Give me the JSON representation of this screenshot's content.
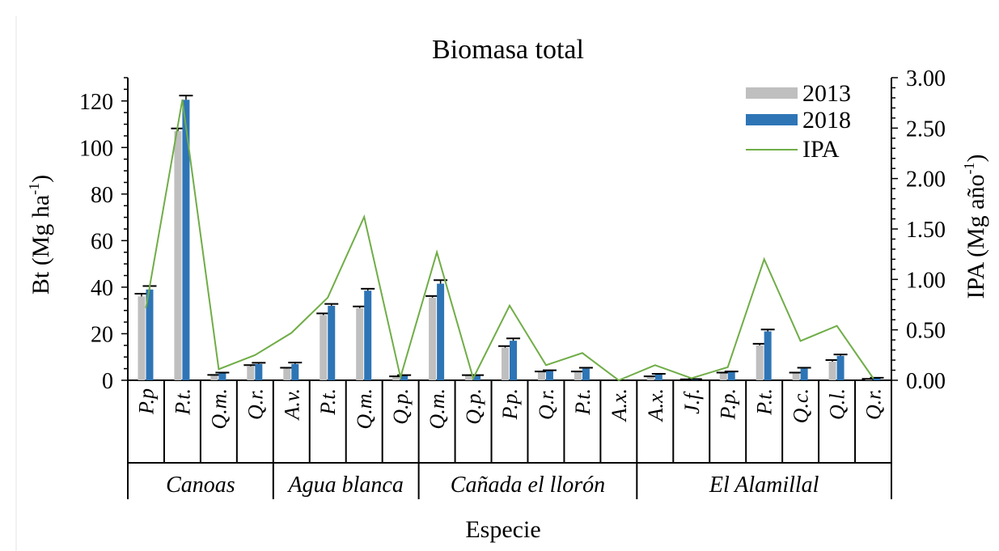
{
  "chart_data": {
    "type": "bar",
    "title": "Biomasa total",
    "xlabel": "Especie",
    "ylabel": "Bt (Mg ha",
    "ylabel_sup": "-1",
    "ylabel_tail": ")",
    "y2label": "IPA (Mg año",
    "y2label_sup": "-1",
    "y2label_tail": ")",
    "ylim": [
      0,
      130
    ],
    "y2lim": [
      0,
      3.0
    ],
    "yticks": [
      "0",
      "20",
      "40",
      "60",
      "80",
      "100",
      "120"
    ],
    "y2ticks": [
      "0.00",
      "0.50",
      "1.00",
      "1.50",
      "2.00",
      "2.50",
      "3.00"
    ],
    "categories": [
      "P.p",
      "P.t.",
      "Q.m.",
      "Q.r.",
      "A.v.",
      "P.t.",
      "Q.m.",
      "Q.p.",
      "Q.m.",
      "Q.p.",
      "P.p.",
      "Q.r.",
      "P.t.",
      "A.x.",
      "A.x.",
      "J.f.",
      "P.p.",
      "P.t.",
      "Q.c.",
      "Q.l.",
      "Q.r."
    ],
    "groups": [
      {
        "name": "Canoas",
        "start": 0,
        "end": 3
      },
      {
        "name": "Agua blanca",
        "start": 4,
        "end": 7
      },
      {
        "name": "Cañada el llorón",
        "start": 8,
        "end": 13
      },
      {
        "name": "El Alamillal",
        "start": 14,
        "end": 20
      }
    ],
    "series": [
      {
        "name": "2013",
        "color": "#bfbfbf",
        "values": [
          36,
          107,
          2,
          6,
          5,
          28,
          31,
          1.5,
          35.5,
          2,
          14,
          3.5,
          3.5,
          0,
          1.5,
          0.3,
          3,
          15,
          3,
          8,
          0.5
        ],
        "errors": [
          1.2,
          1.2,
          0.3,
          0.5,
          0.4,
          0.7,
          0.7,
          0.2,
          0.7,
          0.2,
          0.7,
          0.3,
          0.3,
          0,
          0.2,
          0.1,
          0.3,
          0.7,
          0.3,
          0.7,
          0.1
        ]
      },
      {
        "name": "2018",
        "color": "#2e75b6",
        "values": [
          39,
          120.5,
          3,
          7,
          7,
          32,
          38.5,
          2,
          41.5,
          2,
          17,
          4,
          5,
          0,
          2.5,
          0.4,
          3.5,
          21,
          5,
          10.5,
          1
        ],
        "errors": [
          1.5,
          1.8,
          0.3,
          0.5,
          0.6,
          0.8,
          0.8,
          0.2,
          1.5,
          0.2,
          1.0,
          0.3,
          0.4,
          0,
          0.3,
          0.1,
          0.3,
          0.8,
          0.4,
          0.6,
          0.1
        ]
      },
      {
        "name": "IPA",
        "color": "#70ad47",
        "axis": "y2",
        "type": "line",
        "values": [
          0.72,
          2.78,
          0.11,
          0.25,
          0.47,
          0.82,
          1.62,
          0.03,
          1.27,
          0.02,
          0.74,
          0.15,
          0.27,
          0.0,
          0.15,
          0.02,
          0.13,
          1.2,
          0.39,
          0.54,
          0.02
        ]
      }
    ],
    "legend": {
      "position": "top-right",
      "entries": [
        "2013",
        "2018",
        "IPA"
      ]
    },
    "grid": false
  }
}
